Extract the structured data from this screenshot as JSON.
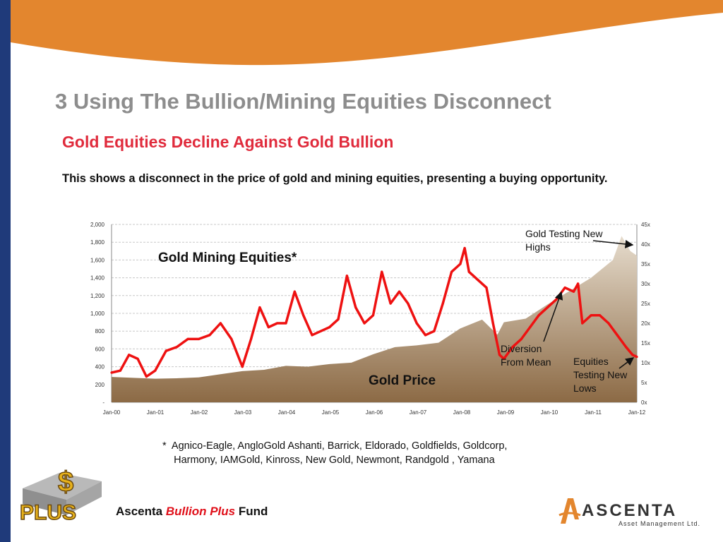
{
  "slide": {
    "title": "3  Using The Bullion/Mining Equities Disconnect",
    "subtitle": "Gold Equities Decline Against Gold Bullion",
    "description": "This shows a disconnect in the price of gold and mining equities, presenting a buying opportunity.",
    "footnote": "*  Agnico-Eagle, AngloGold Ashanti, Barrick, Eldorado, Goldfields, Goldcorp,\n    Harmony, IAMGold, Kinross, New Gold, Newmont, Randgold , Yamana",
    "fund_prefix": "Ascenta ",
    "fund_mid": "Bullion Plus",
    "fund_suffix": " Fund",
    "plus_logo_text": "PLUS",
    "plus_logo_symbol": "$",
    "ascenta_logo_text": "ASCENTA",
    "ascenta_logo_sub": "Asset Management Ltd."
  },
  "colors": {
    "brand_orange": "#e3862e",
    "navy": "#1f3a7a",
    "equities_red": "#ee1111",
    "gold_fill_dark": "#8c6a45",
    "gold_fill_light": "#e6dccd",
    "title_gray": "#8d8d8d",
    "subtitle_red": "#e02b3c"
  },
  "chart_data": {
    "type": "area",
    "x_ticks": [
      "Jan-00",
      "Jan-01",
      "Jan-02",
      "Jan-03",
      "Jan-04",
      "Jan-05",
      "Jan-06",
      "Jan-07",
      "Jan-08",
      "Jan-09",
      "Jan-10",
      "Jan-11",
      "Jan-12"
    ],
    "y_left_ticks": [
      "2,000",
      "1,800",
      "1,600",
      "1,400",
      "1,200",
      "1,000",
      "800",
      "600",
      "400",
      "200",
      "-"
    ],
    "y_left_range": [
      0,
      2000
    ],
    "y_right_ticks": [
      "45x",
      "40x",
      "35x",
      "30x",
      "25x",
      "20x",
      "15x",
      "10x",
      "5x",
      "0x"
    ],
    "y_right_range": [
      0,
      45
    ],
    "grid": true,
    "series": [
      {
        "label": "Gold Mining Equities*",
        "axis": "right",
        "style": "line",
        "x": [
          2000.0,
          2000.2,
          2000.4,
          2000.6,
          2000.8,
          2001.0,
          2001.25,
          2001.5,
          2001.75,
          2002.0,
          2002.25,
          2002.5,
          2002.75,
          2003.0,
          2003.2,
          2003.4,
          2003.6,
          2003.8,
          2004.0,
          2004.2,
          2004.4,
          2004.6,
          2004.8,
          2005.0,
          2005.2,
          2005.4,
          2005.6,
          2005.8,
          2006.0,
          2006.2,
          2006.4,
          2006.6,
          2006.8,
          2007.0,
          2007.2,
          2007.4,
          2007.6,
          2007.8,
          2008.0,
          2008.1,
          2008.2,
          2008.4,
          2008.6,
          2008.75,
          2008.9,
          2009.0,
          2009.2,
          2009.4,
          2009.6,
          2009.8,
          2010.0,
          2010.2,
          2010.4,
          2010.6,
          2010.7,
          2010.8,
          2011.0,
          2011.2,
          2011.4,
          2011.6,
          2011.8,
          2011.95,
          2012.05
        ],
        "values": [
          7.5,
          8,
          12,
          11,
          6.5,
          8,
          13,
          14,
          16,
          16,
          17,
          20,
          16,
          9,
          16,
          24,
          19,
          20,
          20,
          28,
          22,
          17,
          18,
          19,
          21,
          32,
          24,
          20,
          22,
          33,
          25,
          28,
          25,
          20,
          17,
          18,
          25,
          33,
          35,
          39,
          33,
          31,
          29,
          20,
          12,
          11,
          14,
          16,
          19,
          22,
          24,
          26,
          29,
          28,
          30,
          20,
          22,
          22,
          20,
          17,
          14,
          12,
          11.5
        ]
      },
      {
        "label": "Gold Price",
        "axis": "left",
        "style": "area",
        "x": [
          2000.0,
          2000.5,
          2001.0,
          2001.5,
          2002.0,
          2002.5,
          2003.0,
          2003.5,
          2004.0,
          2004.5,
          2005.0,
          2005.5,
          2006.0,
          2006.5,
          2007.0,
          2007.5,
          2008.0,
          2008.5,
          2008.85,
          2009.0,
          2009.5,
          2010.0,
          2010.5,
          2011.0,
          2011.5,
          2011.7,
          2011.9,
          2012.05
        ],
        "values": [
          285,
          275,
          265,
          270,
          280,
          315,
          350,
          365,
          410,
          400,
          430,
          445,
          540,
          620,
          640,
          670,
          830,
          930,
          760,
          900,
          940,
          1100,
          1250,
          1400,
          1600,
          1870,
          1700,
          1650
        ]
      }
    ],
    "annotations": [
      {
        "text": "Gold Mining Equities*"
      },
      {
        "text": "Gold Price"
      },
      {
        "text": "Gold Testing New Highs"
      },
      {
        "text": "Diversion From Mean"
      },
      {
        "text": "Equities Testing New Lows"
      }
    ]
  }
}
